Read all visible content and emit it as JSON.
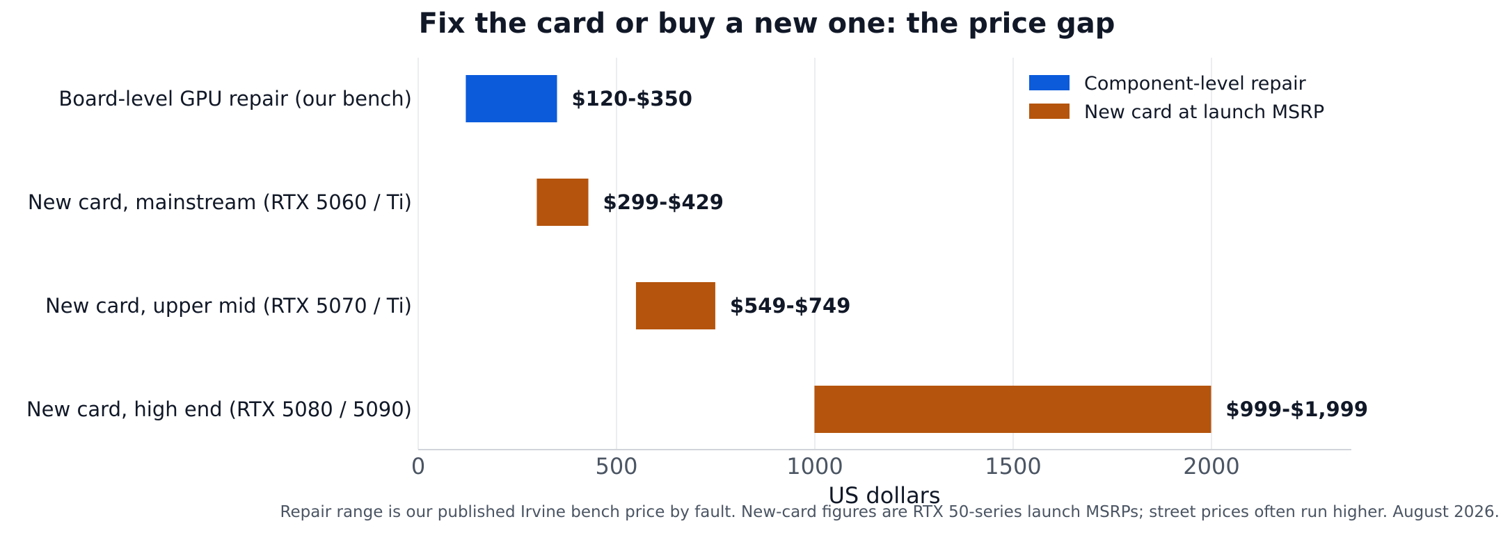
{
  "chart_data": {
    "type": "bar",
    "orientation": "horizontal",
    "title": "Fix the card or buy a new one: the price gap",
    "xlabel": "US dollars",
    "ylabel": "",
    "xlim": [
      0,
      2350
    ],
    "xticks": [
      0,
      500,
      1000,
      1500,
      2000
    ],
    "grid": "vertical",
    "legend_position": "top-right",
    "categories": [
      "Board-level GPU repair (our bench)",
      "New card, mainstream (RTX 5060 / Ti)",
      "New card, upper mid (RTX 5070 / Ti)",
      "New card, high end (RTX 5080 / 5090)"
    ],
    "bars": [
      {
        "category": "Board-level GPU repair (our bench)",
        "start": 120,
        "end": 350,
        "series": "Component-level repair",
        "label": "$120-$350"
      },
      {
        "category": "New card, mainstream (RTX 5060 / Ti)",
        "start": 299,
        "end": 429,
        "series": "New card at launch MSRP",
        "label": "$299-$429"
      },
      {
        "category": "New card, upper mid (RTX 5070 / Ti)",
        "start": 549,
        "end": 749,
        "series": "New card at launch MSRP",
        "label": "$549-$749"
      },
      {
        "category": "New card, high end (RTX 5080 / 5090)",
        "start": 999,
        "end": 1999,
        "series": "New card at launch MSRP",
        "label": "$999-$1,999"
      }
    ],
    "series": [
      {
        "name": "Component-level repair",
        "color": "#0b5bdb"
      },
      {
        "name": "New card at launch MSRP",
        "color": "#b5540c"
      }
    ],
    "footnote": "Repair range is our published Irvine bench price by fault. New-card figures are RTX 50-series launch MSRPs; street prices often run higher. August 2026."
  }
}
